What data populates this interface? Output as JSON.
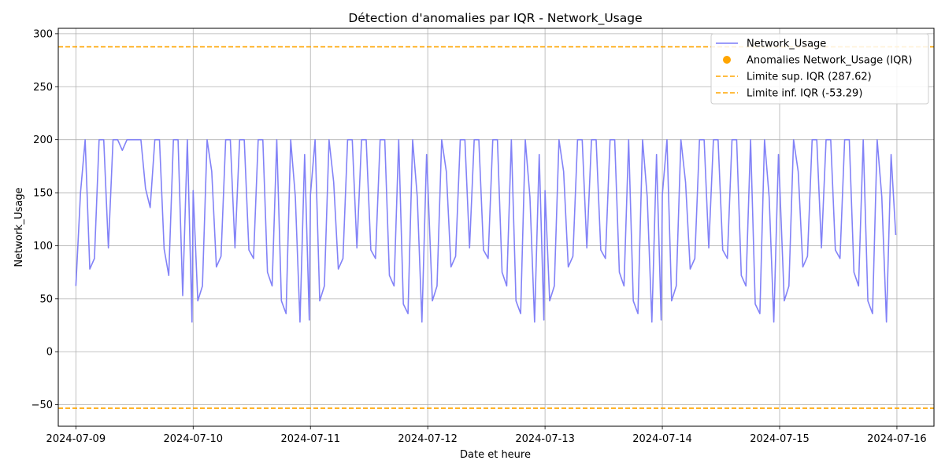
{
  "chart_data": {
    "type": "line",
    "title": "Détection d'anomalies par IQR - Network_Usage",
    "xlabel": "Date et heure",
    "ylabel": "Network_Usage",
    "x_start": "2024-07-09",
    "x_end": "2024-07-16",
    "x_tick_labels": [
      "2024-07-09",
      "2024-07-10",
      "2024-07-11",
      "2024-07-12",
      "2024-07-13",
      "2024-07-14",
      "2024-07-15",
      "2024-07-16"
    ],
    "y_ticks": [
      -50,
      0,
      50,
      100,
      150,
      200,
      250,
      300
    ],
    "y_tick_labels": [
      "−50",
      "0",
      "50",
      "100",
      "150",
      "200",
      "250",
      "300"
    ],
    "xlim": [
      "2024-07-08T20:24",
      "2024-07-16T07:35"
    ],
    "ylim": [
      -70.3,
      305.1
    ],
    "grid": true,
    "legend_position": "top-right",
    "series": [
      {
        "name": "Network_Usage",
        "color": "#7b7bf7",
        "style": "line",
        "daily_pattern_by_hour": [
          [
            62,
            150,
            200,
            78,
            88,
            200,
            200,
            98,
            200,
            200,
            190,
            200,
            200,
            200,
            200,
            154,
            136,
            200,
            200,
            97,
            72,
            200,
            200,
            53,
            200,
            28
          ],
          [
            152,
            48,
            62,
            200,
            170,
            80,
            90,
            200,
            200,
            98,
            200,
            200,
            96,
            88,
            200,
            200,
            75,
            62,
            200,
            48,
            36,
            200,
            146,
            28,
            186,
            30
          ],
          [
            148,
            200,
            48,
            62,
            200,
            160,
            78,
            88,
            200,
            200,
            98,
            200,
            200,
            96,
            88,
            200,
            200,
            72,
            62,
            200,
            45,
            36,
            200,
            146,
            28,
            186
          ],
          [
            160,
            48,
            62,
            200,
            170,
            80,
            90,
            200,
            200,
            98,
            200,
            200,
            96,
            88,
            200,
            200,
            75,
            62,
            200,
            48,
            36,
            200,
            146,
            28,
            186,
            30
          ],
          [
            152,
            48,
            62,
            200,
            170,
            80,
            90,
            200,
            200,
            98,
            200,
            200,
            96,
            88,
            200,
            200,
            75,
            62,
            200,
            48,
            36,
            200,
            146,
            28,
            186,
            30
          ],
          [
            148,
            200,
            48,
            62,
            200,
            160,
            78,
            88,
            200,
            200,
            98,
            200,
            200,
            96,
            88,
            200,
            200,
            72,
            62,
            200,
            45,
            36,
            200,
            146,
            28,
            186
          ],
          [
            160,
            48,
            62,
            200,
            170,
            80,
            90,
            200,
            200,
            98,
            200,
            200,
            96,
            88,
            200,
            200,
            75,
            62,
            200,
            48,
            36,
            200,
            146,
            28,
            186,
            110
          ]
        ]
      },
      {
        "name": "Anomalies Network_Usage (IQR)",
        "color": "#ffa500",
        "style": "scatter",
        "points": []
      },
      {
        "name": "Limite sup. IQR (287.62)",
        "color": "#ffa500",
        "style": "hline",
        "value": 287.62
      },
      {
        "name": "Limite inf. IQR (-53.29)",
        "color": "#ffa500",
        "style": "hline",
        "value": -53.29
      }
    ]
  }
}
